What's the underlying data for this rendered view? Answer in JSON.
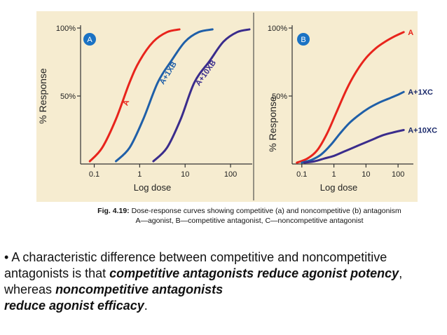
{
  "chart_data": [
    {
      "id": "A",
      "type": "line",
      "panel_label": "A",
      "xlabel": "Log dose",
      "ylabel": "% Response",
      "x_scale": "log",
      "xlim": [
        0.05,
        300
      ],
      "ylim": [
        0,
        100
      ],
      "x_ticks": [
        0.1,
        1,
        10,
        100
      ],
      "x_tick_labels": [
        "0.1",
        "1",
        "10",
        "100"
      ],
      "y_ticks": [
        50,
        100
      ],
      "y_tick_labels": [
        "50%",
        "100%"
      ],
      "grid": false,
      "series": [
        {
          "name": "A",
          "color": "#e8241c",
          "x": [
            0.08,
            0.15,
            0.3,
            0.6,
            1,
            2,
            4,
            7.5
          ],
          "y": [
            2,
            12,
            33,
            60,
            76,
            90,
            97,
            99
          ]
        },
        {
          "name": "A+1XB",
          "color": "#1f5fa8",
          "x": [
            0.3,
            0.6,
            1.2,
            2.5,
            5,
            10,
            20,
            40
          ],
          "y": [
            2,
            12,
            33,
            60,
            76,
            90,
            97,
            99
          ]
        },
        {
          "name": "A+10XB",
          "color": "#3a2c8c",
          "x": [
            2,
            4,
            8,
            16,
            35,
            70,
            140,
            260
          ],
          "y": [
            2,
            12,
            33,
            60,
            76,
            90,
            97,
            99
          ]
        }
      ]
    },
    {
      "id": "B",
      "type": "line",
      "panel_label": "B",
      "xlabel": "Log dose",
      "ylabel": "% Response",
      "x_scale": "log",
      "xlim": [
        0.05,
        300
      ],
      "ylim": [
        0,
        100
      ],
      "x_ticks": [
        0.1,
        1,
        10,
        100
      ],
      "x_tick_labels": [
        "0.1",
        "1",
        "10",
        "100"
      ],
      "y_ticks": [
        50,
        100
      ],
      "y_tick_labels": [
        "50%",
        "100%"
      ],
      "grid": false,
      "series": [
        {
          "name": "A",
          "color": "#e8241c",
          "x": [
            0.07,
            0.15,
            0.3,
            0.6,
            1.2,
            2.5,
            5,
            10,
            20,
            40,
            80,
            150
          ],
          "y": [
            1,
            4,
            10,
            22,
            38,
            55,
            68,
            78,
            85,
            90,
            94,
            97
          ]
        },
        {
          "name": "A+1XC",
          "color": "#1f5fa8",
          "x": [
            0.1,
            0.2,
            0.4,
            0.8,
            1.5,
            3,
            6,
            12,
            25,
            50,
            100,
            150
          ],
          "y": [
            1,
            3,
            7,
            14,
            22,
            30,
            36,
            41,
            45,
            48,
            51,
            53
          ]
        },
        {
          "name": "A+10XC",
          "color": "#3a2c8c",
          "x": [
            0.12,
            0.25,
            0.5,
            1,
            2,
            4,
            8,
            16,
            32,
            64,
            150
          ],
          "y": [
            1,
            2,
            4,
            6,
            9,
            12,
            15,
            18,
            21,
            23,
            25
          ]
        }
      ]
    }
  ],
  "caption": {
    "label": "Fig. 4.19:",
    "line1": "Dose-response curves showing competitive (a) and noncompetitive (b) antagonism",
    "line2": "A—agonist, B—competitive antagonist, C—noncompetitive antagonist"
  },
  "body_text": {
    "bullet": "•",
    "part1": "A characteristic difference between competitive and noncompetitive antagonists is that",
    "emph1": "competitive antagonists reduce agonist potency",
    "part2": ", whereas",
    "emph2": "noncompetitive antagonists",
    "emph3": "reduce agonist efficacy",
    "end": "."
  },
  "colors": {
    "figure_background": "#f6ecd0",
    "panel_label_fill": "#1a72c4",
    "axis": "#333333"
  }
}
